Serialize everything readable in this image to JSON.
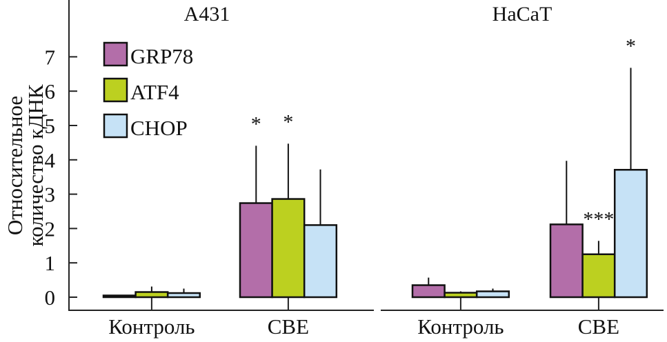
{
  "chart_data": {
    "type": "bar",
    "ylabel_line1": "Относительное",
    "ylabel_line2": "количество кДНК",
    "ylim": [
      0,
      7.6
    ],
    "yticks": [
      0,
      1,
      2,
      3,
      4,
      5,
      6,
      7
    ],
    "legend_position": "top-left",
    "series": [
      {
        "name": "GRP78",
        "color": "#b36ea9"
      },
      {
        "name": "ATF4",
        "color": "#bcd020"
      },
      {
        "name": "CHOP",
        "color": "#c6e2f6"
      }
    ],
    "panels": [
      {
        "title": "A431",
        "categories": [
          "Контроль",
          "CBE"
        ],
        "values": [
          [
            0.05,
            0.15,
            0.12
          ],
          [
            2.74,
            2.86,
            2.1
          ]
        ],
        "errors_upper": [
          [
            0.07,
            0.31,
            0.25
          ],
          [
            4.41,
            4.47,
            3.72
          ]
        ],
        "annotations": [
          [
            "",
            "",
            ""
          ],
          [
            "*",
            "*",
            ""
          ]
        ]
      },
      {
        "title": "HaCaT",
        "categories": [
          "Контроль",
          "CBE"
        ],
        "values": [
          [
            0.35,
            0.13,
            0.17
          ],
          [
            2.12,
            1.25,
            3.71
          ]
        ],
        "errors_upper": [
          [
            0.57,
            0.17,
            0.25
          ],
          [
            3.97,
            1.64,
            6.68
          ]
        ],
        "annotations": [
          [
            "",
            "",
            ""
          ],
          [
            "",
            "***",
            "*"
          ]
        ]
      }
    ]
  }
}
